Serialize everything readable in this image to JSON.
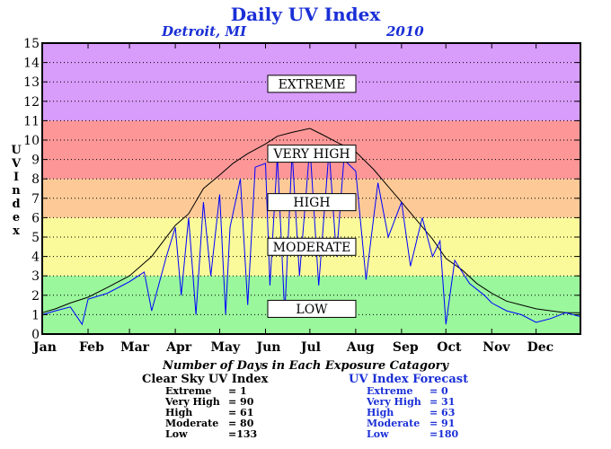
{
  "title": "Daily UV Index",
  "subtitle_city": "Detroit, MI",
  "subtitle_year": "2010",
  "ylabel": "UV Index",
  "xlabel": "Number of Days in Each Exposure Catagory",
  "colors": {
    "extreme": "#d89cfa",
    "very_high": "#fd9797",
    "high": "#fdca97",
    "moderate": "#fafa9a",
    "low": "#9af79c",
    "clear_sky_line": "#000000",
    "forecast_line": "#0000ff",
    "title": "#1a2fd6"
  },
  "bands": [
    {
      "name": "LOW",
      "from": 0,
      "to": 3,
      "color": "#9af79c",
      "label_at": 1.3
    },
    {
      "name": "MODERATE",
      "from": 3,
      "to": 6,
      "color": "#fafa9a",
      "label_at": 4.5
    },
    {
      "name": "HIGH",
      "from": 6,
      "to": 8,
      "color": "#fdca97",
      "label_at": 6.8
    },
    {
      "name": "VERY HIGH",
      "from": 8,
      "to": 11,
      "color": "#fd9797",
      "label_at": 9.3
    },
    {
      "name": "EXTREME",
      "from": 11,
      "to": 15,
      "color": "#d89cfa",
      "label_at": 12.9
    }
  ],
  "summary": {
    "clear_sky": {
      "heading": "Clear Sky UV Index",
      "rows": [
        {
          "label": "Extreme",
          "value": "= 1"
        },
        {
          "label": "Very High",
          "value": "= 90"
        },
        {
          "label": "High",
          "value": "= 61"
        },
        {
          "label": "Moderate",
          "value": "= 80"
        },
        {
          "label": "Low",
          "value": "=133"
        }
      ]
    },
    "forecast": {
      "heading": "UV Index Forecast",
      "rows": [
        {
          "label": "Extreme",
          "value": "= 0"
        },
        {
          "label": "Very High",
          "value": "= 31"
        },
        {
          "label": "High",
          "value": "= 63"
        },
        {
          "label": "Moderate",
          "value": "= 91"
        },
        {
          "label": "Low",
          "value": "=180"
        }
      ]
    }
  },
  "chart_data": {
    "type": "line",
    "title": "Daily UV Index",
    "ylabel": "UV Index",
    "xlabel": "",
    "ylim": [
      0,
      15
    ],
    "xlim": [
      1,
      365
    ],
    "yticks": [
      0,
      1,
      2,
      3,
      4,
      5,
      6,
      7,
      8,
      9,
      10,
      11,
      12,
      13,
      14,
      15
    ],
    "x_ticks": [
      {
        "label": "Jan",
        "day": 1
      },
      {
        "label": "Feb",
        "day": 32
      },
      {
        "label": "Mar",
        "day": 60
      },
      {
        "label": "Apr",
        "day": 91
      },
      {
        "label": "May",
        "day": 121
      },
      {
        "label": "Jun",
        "day": 152
      },
      {
        "label": "Jul",
        "day": 182
      },
      {
        "label": "Aug",
        "day": 213
      },
      {
        "label": "Sep",
        "day": 244
      },
      {
        "label": "Oct",
        "day": 274
      },
      {
        "label": "Nov",
        "day": 305
      },
      {
        "label": "Dec",
        "day": 335
      }
    ],
    "grid": "dotted",
    "series": [
      {
        "key": "clear_sky",
        "color": "#000000",
        "x": [
          1,
          10,
          20,
          32,
          45,
          60,
          75,
          91,
          100,
          110,
          121,
          130,
          140,
          152,
          160,
          170,
          182,
          190,
          200,
          213,
          225,
          235,
          244,
          255,
          265,
          274,
          285,
          295,
          305,
          315,
          325,
          335,
          345,
          355,
          365
        ],
        "y": [
          1.1,
          1.3,
          1.6,
          1.9,
          2.4,
          3.0,
          4.0,
          5.6,
          6.2,
          7.5,
          8.2,
          8.8,
          9.3,
          9.8,
          10.2,
          10.4,
          10.6,
          10.3,
          9.9,
          9.4,
          8.5,
          7.6,
          6.8,
          5.8,
          4.9,
          3.9,
          3.3,
          2.6,
          2.1,
          1.7,
          1.5,
          1.3,
          1.2,
          1.1,
          1.1
        ]
      },
      {
        "key": "forecast",
        "color": "#0000ff",
        "x": [
          1,
          10,
          20,
          28,
          32,
          45,
          55,
          60,
          70,
          75,
          85,
          91,
          95,
          100,
          105,
          110,
          115,
          121,
          125,
          128,
          135,
          140,
          145,
          152,
          155,
          160,
          165,
          170,
          175,
          182,
          188,
          195,
          200,
          205,
          213,
          220,
          228,
          235,
          244,
          250,
          258,
          265,
          270,
          274,
          280,
          290,
          300,
          305,
          315,
          325,
          335,
          345,
          355,
          365
        ],
        "y": [
          1.0,
          1.2,
          1.4,
          0.5,
          1.8,
          2.1,
          2.5,
          2.7,
          3.2,
          1.2,
          4.0,
          5.5,
          2.0,
          6.0,
          1.0,
          6.8,
          3.0,
          7.2,
          1.0,
          5.5,
          8.0,
          1.5,
          8.6,
          8.8,
          2.5,
          9.2,
          1.0,
          9.4,
          3.0,
          9.7,
          2.5,
          9.5,
          4.0,
          9.0,
          8.4,
          2.8,
          7.8,
          5.0,
          6.8,
          3.5,
          6.0,
          4.0,
          4.8,
          0.5,
          3.8,
          2.6,
          2.0,
          1.6,
          1.2,
          1.0,
          0.6,
          0.8,
          1.1,
          0.9
        ]
      }
    ]
  }
}
